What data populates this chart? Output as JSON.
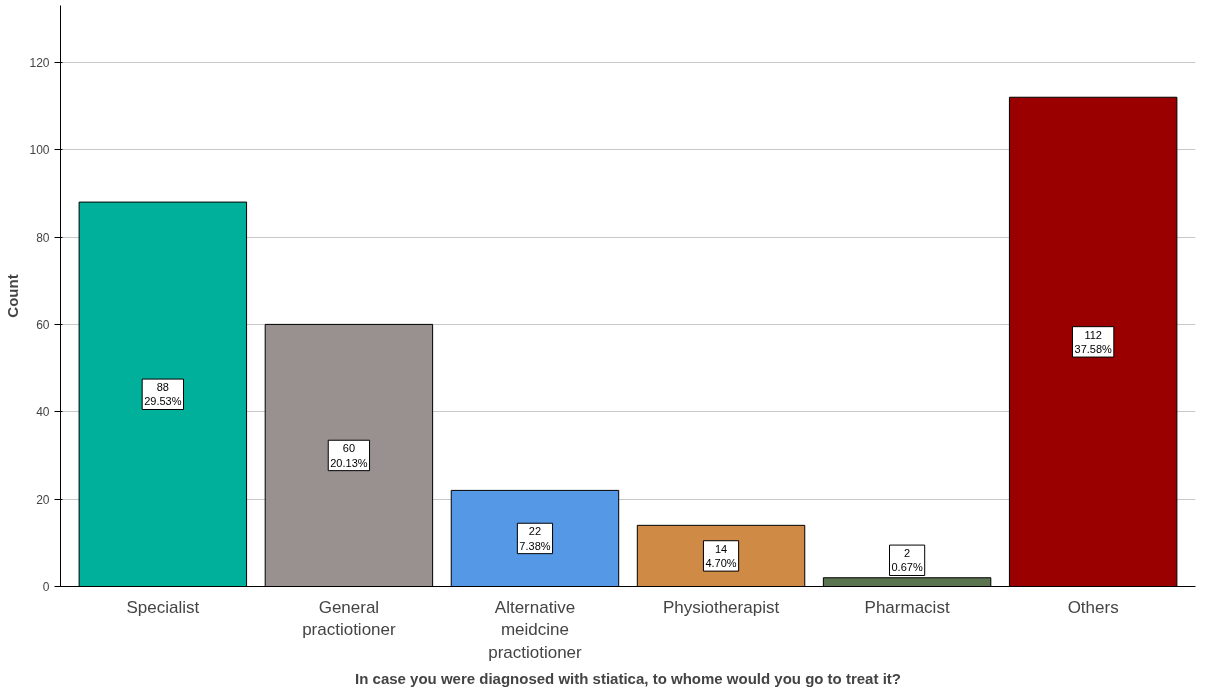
{
  "chart_data": {
    "type": "bar",
    "xlabel": "In case you were diagnosed with stiatica, to whome would you go to treat it?",
    "ylabel": "Count",
    "categories": [
      "Specialist",
      "General practiotioner",
      "Alternative meidcine practiotioner",
      "Physiotherapist",
      "Pharmacist",
      "Others"
    ],
    "values": [
      88,
      60,
      22,
      14,
      2,
      112
    ],
    "colors": [
      "#00b09b",
      "#999190",
      "#5599e6",
      "#cf8a46",
      "#5b7550",
      "#9b0000"
    ],
    "value_labels": [
      "88\n29.53%",
      "60\n20.13%",
      "22\n7.38%",
      "14\n4.70%",
      "2\n0.67%",
      "112\n37.58%"
    ],
    "ylim": [
      0,
      133
    ],
    "yticks": [
      0,
      20,
      40,
      60,
      80,
      100,
      120
    ],
    "grid": "y"
  }
}
